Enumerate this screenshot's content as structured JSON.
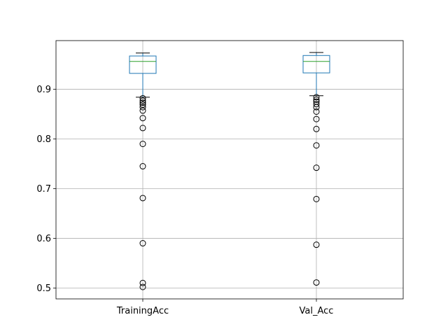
{
  "chart_data": {
    "type": "box",
    "categories": [
      "TrainingAcc",
      "Val_Acc"
    ],
    "title": "",
    "xlabel": "",
    "ylabel": "",
    "ylim": [
      0.478,
      0.998
    ],
    "yticks": [
      0.5,
      0.6,
      0.7,
      0.8,
      0.9
    ],
    "ytick_labels": [
      "0.5",
      "0.6",
      "0.7",
      "0.8",
      "0.9"
    ],
    "grid": true,
    "series": [
      {
        "category": "TrainingAcc",
        "whisker_low": 0.884,
        "q1": 0.932,
        "median": 0.956,
        "q3": 0.967,
        "whisker_high": 0.973,
        "outliers": [
          0.882,
          0.877,
          0.873,
          0.869,
          0.864,
          0.857,
          0.842,
          0.822,
          0.79,
          0.745,
          0.681,
          0.59,
          0.51,
          0.502
        ]
      },
      {
        "category": "Val_Acc",
        "whisker_low": 0.887,
        "q1": 0.933,
        "median": 0.956,
        "q3": 0.968,
        "whisker_high": 0.974,
        "outliers": [
          0.884,
          0.879,
          0.875,
          0.87,
          0.864,
          0.855,
          0.84,
          0.82,
          0.787,
          0.742,
          0.679,
          0.587,
          0.511
        ]
      }
    ],
    "colors": {
      "box": "#1f77b4",
      "whisker": "#1f77b4",
      "cap": "#000000",
      "median": "#2ca02c",
      "outlier": "#000000",
      "grid": "#b0b0b0",
      "axes": "#000000"
    }
  }
}
